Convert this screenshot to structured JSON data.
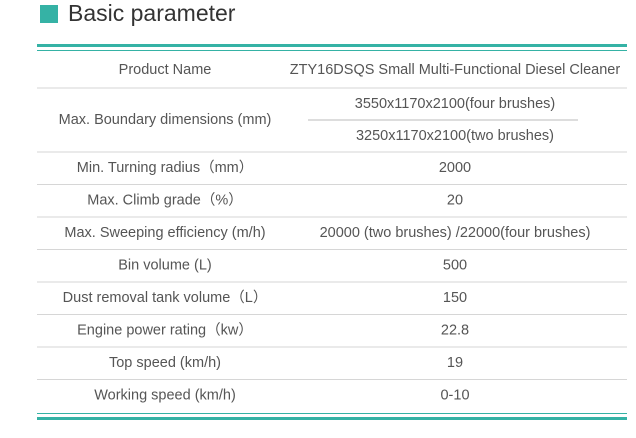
{
  "header": {
    "title": "Basic parameter"
  },
  "table": {
    "rows": [
      {
        "label": "Product Name",
        "values": [
          "ZTY16DSQS Small Multi-Functional Diesel Cleaner"
        ]
      },
      {
        "label": "Max. Boundary dimensions (mm)",
        "values": [
          "3550x1170x2100(four brushes)",
          "3250x1170x2100(two brushes)"
        ]
      },
      {
        "label": "Min. Turning radius（mm）",
        "values": [
          "2000"
        ]
      },
      {
        "label": "Max. Climb grade（%）",
        "values": [
          "20"
        ]
      },
      {
        "label": "Max. Sweeping efficiency (m/h)",
        "values": [
          "20000 (two brushes) /22000(four brushes)"
        ]
      },
      {
        "label": "Bin volume (L)",
        "values": [
          "500"
        ]
      },
      {
        "label": "Dust removal tank volume（L）",
        "values": [
          "150"
        ]
      },
      {
        "label": "Engine power rating（kw）",
        "values": [
          "22.8"
        ]
      },
      {
        "label": "Top speed (km/h)",
        "values": [
          "19"
        ]
      },
      {
        "label": "Working speed (km/h)",
        "values": [
          "0-10"
        ]
      }
    ]
  }
}
